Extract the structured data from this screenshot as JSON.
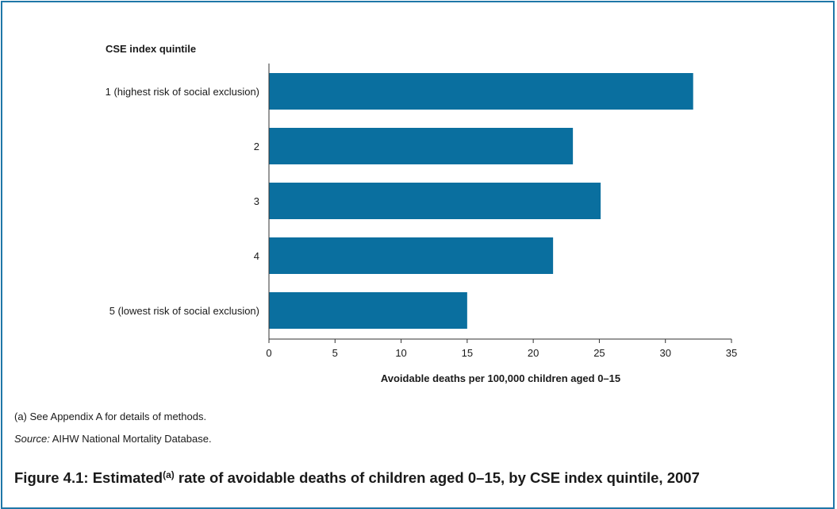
{
  "chart_data": {
    "type": "bar",
    "orientation": "horizontal",
    "categories": [
      "1 (highest risk of social exclusion)",
      "2",
      "3",
      "4",
      "5 (lowest risk of social exclusion)"
    ],
    "values": [
      32.1,
      23.0,
      25.1,
      21.5,
      15.0
    ],
    "ytitle": "CSE index quintile",
    "xlabel": "Avoidable deaths per 100,000 children aged 0–15",
    "xlim": [
      0,
      35
    ],
    "xticks": [
      "0",
      "5",
      "10",
      "15",
      "20",
      "25",
      "30",
      "35"
    ],
    "grid": false,
    "bar_color": "#0a6f9f"
  },
  "footnote": "(a) See Appendix A for details of methods.",
  "source_label": "Source:",
  "source_text": " AIHW National Mortality Database.",
  "caption": {
    "before": "Figure 4.1: Estimated",
    "sup": "(a)",
    "after": " rate of avoidable deaths of children aged 0–15, by CSE index quintile, 2007"
  },
  "frame_color": "#1f77a8"
}
